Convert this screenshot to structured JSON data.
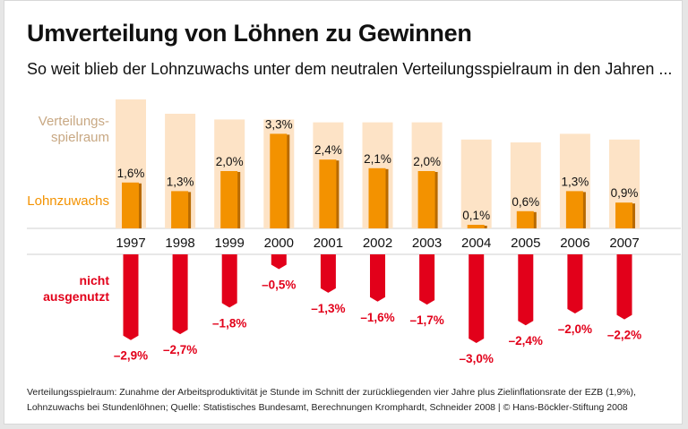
{
  "title": "Umverteilung von Löhnen zu Gewinnen",
  "subtitle": "So weit blieb der Lohnzuwachs unter dem neutralen Verteilungsspielraum in den Jahren ...",
  "footer": {
    "line1": "Verteilungsspielraum: Zunahme der Arbeitsproduktivität je Stunde im Schnitt der zurückliegenden vier Jahre plus Zielinflationsrate der EZB (1,9%),",
    "line2": "Lohnzuwachs bei Stundenlöhnen; Quelle: Statistisches Bundesamt, Berechnungen Kromphardt, Schneider 2008 | © Hans-Böckler-Stiftung 2008"
  },
  "chart_data": {
    "type": "bar",
    "categories": [
      "1997",
      "1998",
      "1999",
      "2000",
      "2001",
      "2002",
      "2003",
      "2004",
      "2005",
      "2006",
      "2007"
    ],
    "series": [
      {
        "name": "Verteilungsspielraum",
        "label": "Verteilungs-\nspielraum",
        "color": "#fde3c6",
        "values": [
          4.5,
          4.0,
          3.8,
          3.8,
          3.7,
          3.7,
          3.7,
          3.1,
          3.0,
          3.3,
          3.1
        ]
      },
      {
        "name": "Lohnzuwachs",
        "label": "Lohnzuwachs",
        "color": "#f39200",
        "values": [
          1.6,
          1.3,
          2.0,
          3.3,
          2.4,
          2.1,
          2.0,
          0.1,
          0.6,
          1.3,
          0.9
        ],
        "labels": [
          "1,6%",
          "1,3%",
          "2,0%",
          "3,3%",
          "2,4%",
          "2,1%",
          "2,0%",
          "0,1%",
          "0,6%",
          "1,3%",
          "0,9%"
        ]
      },
      {
        "name": "nicht ausgenutzt",
        "label": "nicht\nausgenutzt",
        "color": "#e2001a",
        "values": [
          -2.9,
          -2.7,
          -1.8,
          -0.5,
          -1.3,
          -1.6,
          -1.7,
          -3.0,
          -2.4,
          -2.0,
          -2.2
        ],
        "labels": [
          "–2,9%",
          "–2,7%",
          "–1,8%",
          "–0,5%",
          "–1,3%",
          "–1,6%",
          "–1,7%",
          "–3,0%",
          "–2,4%",
          "–2,0%",
          "–2,2%"
        ]
      }
    ],
    "legend_colors": {
      "spielraum_text": "#c8a883",
      "lohn_text": "#f39200",
      "nicht_text": "#e2001a"
    }
  }
}
